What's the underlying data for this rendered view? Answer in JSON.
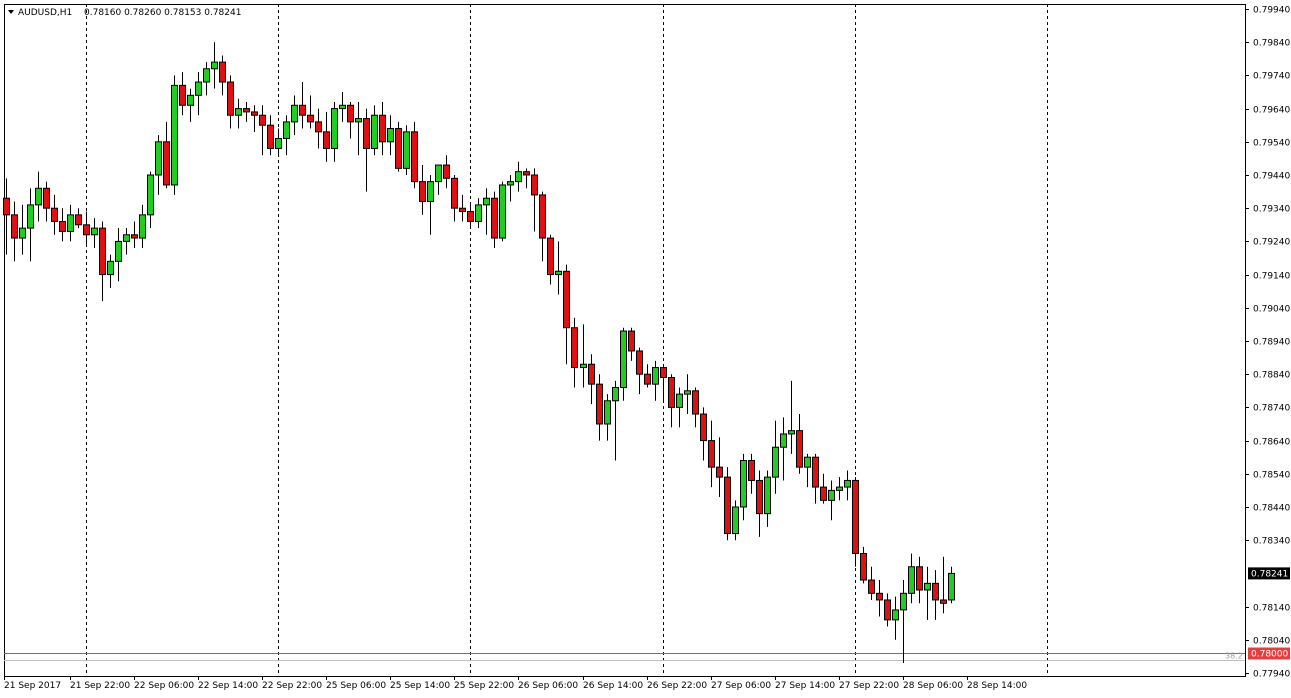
{
  "header": {
    "symbol": "AUDUSD,H1",
    "ohlc": "0.78160 0.78260 0.78153 0.78241"
  },
  "colors": {
    "bull": "#22cc22",
    "bear": "#dd1111",
    "wick": "#000000",
    "hline": "#e04040",
    "grid": "#000000"
  },
  "chart_data": {
    "type": "candlestick",
    "title": "",
    "xlabel": "",
    "ylabel": "",
    "ylim": [
      0.7794,
      0.7994
    ],
    "y_ticks": [
      "0.79940",
      "0.79840",
      "0.79740",
      "0.79640",
      "0.79540",
      "0.79440",
      "0.79340",
      "0.79240",
      "0.79140",
      "0.79040",
      "0.78940",
      "0.78840",
      "0.78740",
      "0.78640",
      "0.78540",
      "0.78440",
      "0.78340",
      "0.78140",
      "0.78040",
      "0.77940"
    ],
    "x_labels": [
      "21 Sep 2017",
      "21 Sep 22:00",
      "22 Sep 06:00",
      "22 Sep 14:00",
      "22 Sep 22:00",
      "25 Sep 06:00",
      "25 Sep 14:00",
      "25 Sep 22:00",
      "26 Sep 06:00",
      "26 Sep 14:00",
      "26 Sep 22:00",
      "27 Sep 06:00",
      "27 Sep 14:00",
      "27 Sep 22:00",
      "28 Sep 06:00",
      "28 Sep 14:00"
    ],
    "period_separators": [
      10,
      34,
      58,
      82,
      106,
      130
    ],
    "current_price": "0.78241",
    "horizontal_line": {
      "value": 0.78,
      "label": "0.78000"
    },
    "fib_label": "38.2",
    "candles": [
      [
        0.7937,
        0.7943,
        0.792,
        0.7932
      ],
      [
        0.7932,
        0.7936,
        0.7918,
        0.7925
      ],
      [
        0.7925,
        0.7935,
        0.792,
        0.7928
      ],
      [
        0.7928,
        0.794,
        0.7918,
        0.7935
      ],
      [
        0.7935,
        0.7945,
        0.793,
        0.794
      ],
      [
        0.794,
        0.7942,
        0.793,
        0.7934
      ],
      [
        0.7934,
        0.7938,
        0.7926,
        0.793
      ],
      [
        0.793,
        0.7934,
        0.7924,
        0.7927
      ],
      [
        0.7927,
        0.7935,
        0.7924,
        0.7932
      ],
      [
        0.7932,
        0.7934,
        0.7928,
        0.7929
      ],
      [
        0.7929,
        0.7933,
        0.7923,
        0.7926
      ],
      [
        0.7926,
        0.7931,
        0.7922,
        0.7928
      ],
      [
        0.7928,
        0.793,
        0.7906,
        0.7914
      ],
      [
        0.7914,
        0.792,
        0.791,
        0.7918
      ],
      [
        0.7918,
        0.7928,
        0.7912,
        0.7924
      ],
      [
        0.7924,
        0.7928,
        0.792,
        0.7926
      ],
      [
        0.7926,
        0.793,
        0.7922,
        0.7925
      ],
      [
        0.7925,
        0.7935,
        0.7922,
        0.7932
      ],
      [
        0.7932,
        0.7945,
        0.7928,
        0.7944
      ],
      [
        0.7944,
        0.7956,
        0.7938,
        0.7954
      ],
      [
        0.7954,
        0.796,
        0.794,
        0.7941
      ],
      [
        0.7941,
        0.7974,
        0.7938,
        0.7971
      ],
      [
        0.7971,
        0.7975,
        0.7962,
        0.7965
      ],
      [
        0.7965,
        0.797,
        0.796,
        0.7968
      ],
      [
        0.7968,
        0.7975,
        0.7962,
        0.7972
      ],
      [
        0.7972,
        0.7978,
        0.7968,
        0.7976
      ],
      [
        0.7976,
        0.7984,
        0.797,
        0.7978
      ],
      [
        0.7978,
        0.798,
        0.7968,
        0.7972
      ],
      [
        0.7972,
        0.7974,
        0.7958,
        0.7962
      ],
      [
        0.7962,
        0.7967,
        0.7958,
        0.7964
      ],
      [
        0.7964,
        0.7966,
        0.796,
        0.7963
      ],
      [
        0.7963,
        0.7965,
        0.7957,
        0.7962
      ],
      [
        0.7962,
        0.7965,
        0.795,
        0.7959
      ],
      [
        0.7959,
        0.7962,
        0.795,
        0.7952
      ],
      [
        0.7952,
        0.7958,
        0.795,
        0.7955
      ],
      [
        0.7955,
        0.7962,
        0.795,
        0.796
      ],
      [
        0.796,
        0.7968,
        0.7956,
        0.7965
      ],
      [
        0.7965,
        0.7972,
        0.7958,
        0.7962
      ],
      [
        0.7962,
        0.7968,
        0.7958,
        0.796
      ],
      [
        0.796,
        0.7964,
        0.7952,
        0.7957
      ],
      [
        0.7957,
        0.7963,
        0.7948,
        0.7952
      ],
      [
        0.7952,
        0.7966,
        0.7948,
        0.7964
      ],
      [
        0.7964,
        0.7969,
        0.796,
        0.7965
      ],
      [
        0.7965,
        0.7966,
        0.7955,
        0.796
      ],
      [
        0.796,
        0.7966,
        0.795,
        0.7961
      ],
      [
        0.7961,
        0.7964,
        0.7939,
        0.7952
      ],
      [
        0.7952,
        0.7965,
        0.795,
        0.7962
      ],
      [
        0.7962,
        0.7966,
        0.795,
        0.7954
      ],
      [
        0.7954,
        0.7962,
        0.795,
        0.7958
      ],
      [
        0.7958,
        0.796,
        0.7945,
        0.7946
      ],
      [
        0.7946,
        0.7959,
        0.7944,
        0.7957
      ],
      [
        0.7957,
        0.796,
        0.794,
        0.7942
      ],
      [
        0.7942,
        0.7947,
        0.7932,
        0.7936
      ],
      [
        0.7936,
        0.7944,
        0.7926,
        0.7942
      ],
      [
        0.7942,
        0.7946,
        0.7938,
        0.7947
      ],
      [
        0.7947,
        0.795,
        0.794,
        0.7943
      ],
      [
        0.7943,
        0.7944,
        0.793,
        0.7934
      ],
      [
        0.7934,
        0.7938,
        0.793,
        0.7933
      ],
      [
        0.7933,
        0.7935,
        0.7928,
        0.793
      ],
      [
        0.793,
        0.7937,
        0.7928,
        0.7935
      ],
      [
        0.7935,
        0.794,
        0.7926,
        0.7937
      ],
      [
        0.7937,
        0.7939,
        0.7922,
        0.7925
      ],
      [
        0.7925,
        0.7942,
        0.7924,
        0.7941
      ],
      [
        0.7941,
        0.7944,
        0.7936,
        0.7942
      ],
      [
        0.7942,
        0.7948,
        0.7939,
        0.7945
      ],
      [
        0.7945,
        0.7946,
        0.794,
        0.7944
      ],
      [
        0.7944,
        0.7946,
        0.7927,
        0.7938
      ],
      [
        0.7938,
        0.7939,
        0.7918,
        0.7925
      ],
      [
        0.7925,
        0.7926,
        0.7911,
        0.7914
      ],
      [
        0.7914,
        0.7924,
        0.7908,
        0.7915
      ],
      [
        0.7915,
        0.7917,
        0.7887,
        0.7898
      ],
      [
        0.7898,
        0.7901,
        0.788,
        0.7886
      ],
      [
        0.7886,
        0.7899,
        0.788,
        0.7887
      ],
      [
        0.7887,
        0.789,
        0.7875,
        0.7881
      ],
      [
        0.7881,
        0.7884,
        0.7864,
        0.7869
      ],
      [
        0.7869,
        0.7878,
        0.7864,
        0.7876
      ],
      [
        0.7876,
        0.7882,
        0.7858,
        0.788
      ],
      [
        0.788,
        0.7898,
        0.7876,
        0.7897
      ],
      [
        0.7897,
        0.7898,
        0.7888,
        0.7891
      ],
      [
        0.7891,
        0.7892,
        0.7878,
        0.7884
      ],
      [
        0.7884,
        0.7887,
        0.788,
        0.7881
      ],
      [
        0.7881,
        0.7888,
        0.7876,
        0.7886
      ],
      [
        0.7886,
        0.7887,
        0.7876,
        0.7883
      ],
      [
        0.7883,
        0.7884,
        0.7868,
        0.7874
      ],
      [
        0.7874,
        0.788,
        0.7868,
        0.7878
      ],
      [
        0.7878,
        0.7884,
        0.7872,
        0.7879
      ],
      [
        0.7879,
        0.788,
        0.7868,
        0.7872
      ],
      [
        0.7872,
        0.7874,
        0.7858,
        0.7864
      ],
      [
        0.7864,
        0.787,
        0.785,
        0.7856
      ],
      [
        0.7856,
        0.7865,
        0.7847,
        0.7853
      ],
      [
        0.7853,
        0.7856,
        0.7834,
        0.7836
      ],
      [
        0.7836,
        0.7846,
        0.7834,
        0.7844
      ],
      [
        0.7844,
        0.786,
        0.784,
        0.7858
      ],
      [
        0.7858,
        0.786,
        0.7848,
        0.7852
      ],
      [
        0.7852,
        0.7855,
        0.7835,
        0.7842
      ],
      [
        0.7842,
        0.7855,
        0.7838,
        0.7853
      ],
      [
        0.7853,
        0.787,
        0.7848,
        0.7862
      ],
      [
        0.7862,
        0.7871,
        0.7852,
        0.7866
      ],
      [
        0.7866,
        0.7882,
        0.786,
        0.7867
      ],
      [
        0.7867,
        0.7872,
        0.7854,
        0.7856
      ],
      [
        0.7856,
        0.786,
        0.785,
        0.7859
      ],
      [
        0.7859,
        0.786,
        0.7845,
        0.785
      ],
      [
        0.785,
        0.7854,
        0.7845,
        0.7846
      ],
      [
        0.7846,
        0.7852,
        0.784,
        0.7849
      ],
      [
        0.7849,
        0.7853,
        0.7846,
        0.785
      ],
      [
        0.785,
        0.7855,
        0.7846,
        0.7852
      ],
      [
        0.7852,
        0.7853,
        0.7826,
        0.783
      ],
      [
        0.783,
        0.7832,
        0.7821,
        0.7822
      ],
      [
        0.7822,
        0.7826,
        0.7816,
        0.7818
      ],
      [
        0.7818,
        0.7822,
        0.7811,
        0.7816
      ],
      [
        0.7816,
        0.7818,
        0.7808,
        0.781
      ],
      [
        0.781,
        0.7817,
        0.7804,
        0.7813
      ],
      [
        0.7813,
        0.7822,
        0.7797,
        0.7818
      ],
      [
        0.7818,
        0.783,
        0.7815,
        0.7826
      ],
      [
        0.7826,
        0.7829,
        0.7815,
        0.7819
      ],
      [
        0.7819,
        0.7826,
        0.781,
        0.7821
      ],
      [
        0.7821,
        0.7825,
        0.781,
        0.7816
      ],
      [
        0.7816,
        0.7829,
        0.7812,
        0.7815
      ],
      [
        0.7816,
        0.7826,
        0.7815,
        0.7824
      ]
    ]
  }
}
